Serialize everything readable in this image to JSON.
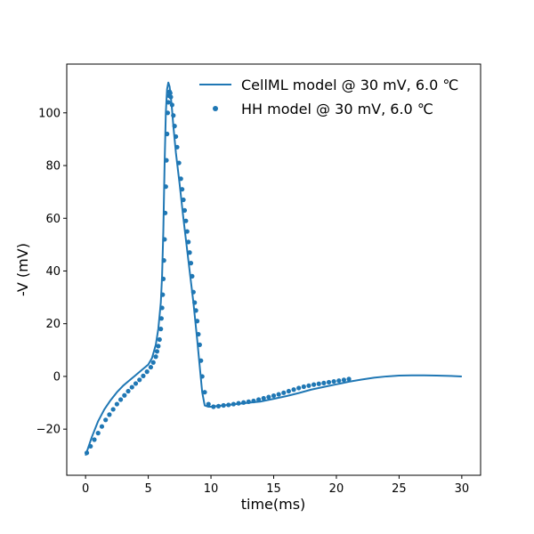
{
  "chart_data": {
    "type": "line",
    "xlabel": "time(ms)",
    "ylabel": "-V (mV)",
    "xlim": [
      -1.5,
      31.5
    ],
    "ylim": [
      -37.5,
      118.5
    ],
    "xticks": [
      0,
      5,
      10,
      15,
      20,
      25,
      30
    ],
    "yticks": [
      -20,
      0,
      20,
      40,
      60,
      80,
      100
    ],
    "grid": false,
    "legend_position": "top-right",
    "color": "#1f77b4",
    "series": [
      {
        "name": "CellML model @ 30 mV, 6.0 ℃",
        "style": "line",
        "x": [
          0,
          0.5,
          1,
          1.5,
          2,
          2.5,
          3,
          3.5,
          4,
          4.5,
          5,
          5.3,
          5.6,
          5.8,
          6.0,
          6.1,
          6.2,
          6.3,
          6.4,
          6.5,
          6.6,
          6.7,
          6.8,
          6.9,
          7.0,
          7.2,
          7.5,
          7.8,
          8.0,
          8.3,
          8.6,
          8.9,
          9.1,
          9.3,
          9.5,
          9.8,
          10,
          11,
          12,
          13,
          14,
          15,
          16,
          17,
          18,
          19,
          20,
          21,
          22,
          23,
          24,
          25,
          26,
          27,
          28,
          29,
          30
        ],
        "y": [
          -30,
          -23,
          -17,
          -12.5,
          -9,
          -6,
          -3.5,
          -1.5,
          0.5,
          2.5,
          4.5,
          7,
          12,
          18,
          28,
          38,
          55,
          80,
          100,
          109,
          111.5,
          110,
          106,
          101,
          95,
          85,
          73,
          60,
          52,
          40,
          28,
          14,
          4,
          -6,
          -11,
          -11.5,
          -11.5,
          -11,
          -10.5,
          -10,
          -9.5,
          -8.5,
          -7.5,
          -6.3,
          -5,
          -4,
          -3,
          -2,
          -1.2,
          -0.5,
          0,
          0.3,
          0.4,
          0.4,
          0.3,
          0.2,
          0
        ]
      },
      {
        "name": "HH model @ 30 mV, 6.0 ℃",
        "style": "points",
        "x": [
          0.1,
          0.4,
          0.7,
          1.0,
          1.3,
          1.6,
          1.9,
          2.2,
          2.5,
          2.8,
          3.1,
          3.4,
          3.7,
          4.0,
          4.3,
          4.6,
          4.9,
          5.2,
          5.4,
          5.6,
          5.7,
          5.8,
          5.9,
          6.0,
          6.05,
          6.1,
          6.15,
          6.2,
          6.25,
          6.3,
          6.35,
          6.4,
          6.45,
          6.5,
          6.55,
          6.6,
          6.65,
          6.7,
          6.75,
          6.8,
          6.9,
          7.0,
          7.1,
          7.2,
          7.3,
          7.45,
          7.6,
          7.7,
          7.8,
          7.9,
          8.0,
          8.1,
          8.2,
          8.3,
          8.4,
          8.5,
          8.6,
          8.7,
          8.8,
          8.9,
          9.0,
          9.1,
          9.2,
          9.3,
          9.5,
          9.8,
          10.2,
          10.6,
          11.0,
          11.4,
          11.8,
          12.2,
          12.6,
          13.0,
          13.4,
          13.8,
          14.2,
          14.6,
          15.0,
          15.4,
          15.8,
          16.2,
          16.6,
          17.0,
          17.4,
          17.8,
          18.2,
          18.6,
          19.0,
          19.4,
          19.8,
          20.2,
          20.6,
          21.0
        ],
        "y": [
          -29,
          -26.5,
          -24,
          -21.5,
          -19,
          -16.5,
          -14.5,
          -12.5,
          -10.5,
          -8.8,
          -7.2,
          -5.6,
          -4.1,
          -2.7,
          -1.3,
          0.2,
          1.8,
          3.5,
          5.3,
          7.5,
          9.5,
          11.5,
          14,
          18,
          22,
          26,
          31,
          37,
          44,
          52,
          62,
          72,
          82,
          92,
          100,
          104,
          106.5,
          108,
          107.5,
          106,
          103,
          99,
          95,
          91,
          87,
          81,
          75,
          71,
          67,
          63,
          59,
          55,
          51,
          47,
          43,
          38,
          32,
          28,
          25,
          21,
          16,
          12,
          6,
          0,
          -6,
          -10.5,
          -11.5,
          -11.3,
          -11,
          -10.8,
          -10.5,
          -10.2,
          -9.9,
          -9.6,
          -9.3,
          -8.8,
          -8.3,
          -7.8,
          -7.3,
          -6.8,
          -6.2,
          -5.6,
          -5.0,
          -4.4,
          -3.9,
          -3.5,
          -3.1,
          -2.8,
          -2.5,
          -2.2,
          -1.9,
          -1.6,
          -1.3,
          -1.0
        ]
      }
    ]
  }
}
